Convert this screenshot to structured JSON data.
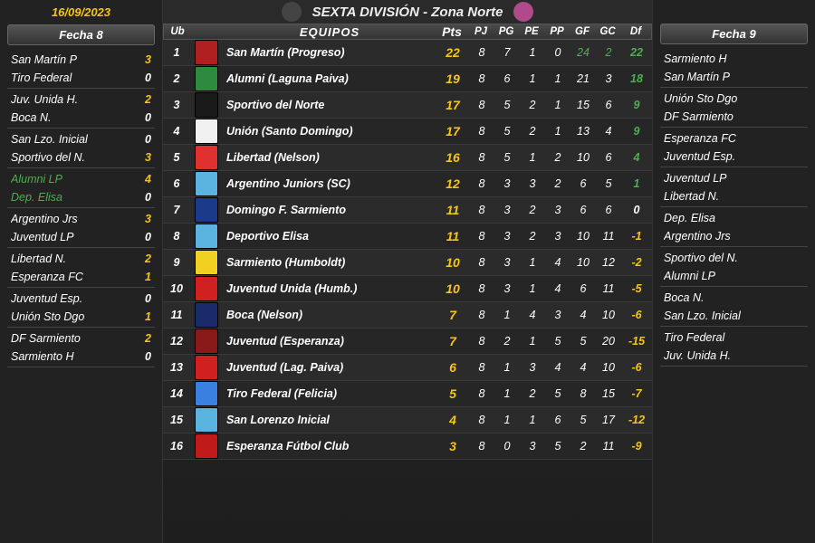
{
  "date": "16/09/2023",
  "title": "SEXTA DIVISIÓN - Zona Norte",
  "left_panel": {
    "header": "Fecha 8",
    "matches": [
      {
        "home": "San Martín P",
        "hs": "3",
        "away": "Tiro Federal",
        "as": "0",
        "hc": "yellow",
        "ac": "white",
        "hg": false,
        "ag": false
      },
      {
        "home": "Juv. Unida H.",
        "hs": "2",
        "away": "Boca N.",
        "as": "0",
        "hc": "yellow",
        "ac": "white",
        "hg": false,
        "ag": false
      },
      {
        "home": "San Lzo. Inicial",
        "hs": "0",
        "away": "Sportivo del N.",
        "as": "3",
        "hc": "white",
        "ac": "yellow",
        "hg": false,
        "ag": false
      },
      {
        "home": "Alumni LP",
        "hs": "4",
        "away": "Dep. Elisa",
        "as": "0",
        "hc": "yellow",
        "ac": "white",
        "hg": true,
        "ag": true
      },
      {
        "home": "Argentino Jrs",
        "hs": "3",
        "away": "Juventud LP",
        "as": "0",
        "hc": "yellow",
        "ac": "white",
        "hg": false,
        "ag": false
      },
      {
        "home": "Libertad N.",
        "hs": "2",
        "away": "Esperanza FC",
        "as": "1",
        "hc": "yellow",
        "ac": "yellow",
        "hg": false,
        "ag": false
      },
      {
        "home": "Juventud Esp.",
        "hs": "0",
        "away": "Unión Sto Dgo",
        "as": "1",
        "hc": "white",
        "ac": "yellow",
        "hg": false,
        "ag": false
      },
      {
        "home": "DF Sarmiento",
        "hs": "2",
        "away": "Sarmiento H",
        "as": "0",
        "hc": "yellow",
        "ac": "white",
        "hg": false,
        "ag": false
      }
    ]
  },
  "right_panel": {
    "header": "Fecha 9",
    "matches": [
      {
        "home": "Sarmiento H",
        "away": "San Martín P"
      },
      {
        "home": "Unión Sto Dgo",
        "away": "DF Sarmiento"
      },
      {
        "home": "Esperanza FC",
        "away": "Juventud Esp."
      },
      {
        "home": "Juventud LP",
        "away": "Libertad N."
      },
      {
        "home": "Dep. Elisa",
        "away": "Argentino Jrs"
      },
      {
        "home": "Sportivo del N.",
        "away": "Alumni LP"
      },
      {
        "home": "Boca N.",
        "away": "San Lzo. Inicial"
      },
      {
        "home": "Tiro Federal",
        "away": "Juv. Unida H."
      }
    ]
  },
  "table": {
    "columns": {
      "ub": "Ub",
      "equipos": "EQUIPOS",
      "pts": "Pts",
      "pj": "PJ",
      "pg": "PG",
      "pe": "PE",
      "pp": "PP",
      "gf": "GF",
      "gc": "GC",
      "df": "Df"
    },
    "rows": [
      {
        "ub": 1,
        "badge": "#b02020",
        "team": "San Martín (Progreso)",
        "pts": 22,
        "pj": 8,
        "pg": 7,
        "pe": 1,
        "pp": 0,
        "gf": 24,
        "gc": 2,
        "df": 22,
        "gfc": "green",
        "gcc": "green"
      },
      {
        "ub": 2,
        "badge": "#2e8b3d",
        "team": "Alumni (Laguna Paiva)",
        "pts": 19,
        "pj": 8,
        "pg": 6,
        "pe": 1,
        "pp": 1,
        "gf": 21,
        "gc": 3,
        "df": 18
      },
      {
        "ub": 3,
        "badge": "#1a1a1a",
        "team": "Sportivo del Norte",
        "pts": 17,
        "pj": 8,
        "pg": 5,
        "pe": 2,
        "pp": 1,
        "gf": 15,
        "gc": 6,
        "df": 9
      },
      {
        "ub": 4,
        "badge": "#f0f0f0",
        "team": "Unión (Santo Domingo)",
        "pts": 17,
        "pj": 8,
        "pg": 5,
        "pe": 2,
        "pp": 1,
        "gf": 13,
        "gc": 4,
        "df": 9
      },
      {
        "ub": 5,
        "badge": "#e03030",
        "team": "Libertad (Nelson)",
        "pts": 16,
        "pj": 8,
        "pg": 5,
        "pe": 1,
        "pp": 2,
        "gf": 10,
        "gc": 6,
        "df": 4
      },
      {
        "ub": 6,
        "badge": "#5bb4e0",
        "team": "Argentino Juniors (SC)",
        "pts": 12,
        "pj": 8,
        "pg": 3,
        "pe": 3,
        "pp": 2,
        "gf": 6,
        "gc": 5,
        "df": 1
      },
      {
        "ub": 7,
        "badge": "#1a3a8a",
        "team": "Domingo F. Sarmiento",
        "pts": 11,
        "pj": 8,
        "pg": 3,
        "pe": 2,
        "pp": 3,
        "gf": 6,
        "gc": 6,
        "df": 0
      },
      {
        "ub": 8,
        "badge": "#5bb4e0",
        "team": "Deportivo Elisa",
        "pts": 11,
        "pj": 8,
        "pg": 3,
        "pe": 2,
        "pp": 3,
        "gf": 10,
        "gc": 11,
        "df": -1
      },
      {
        "ub": 9,
        "badge": "#f0d020",
        "team": "Sarmiento (Humboldt)",
        "pts": 10,
        "pj": 8,
        "pg": 3,
        "pe": 1,
        "pp": 4,
        "gf": 10,
        "gc": 12,
        "df": -2
      },
      {
        "ub": 10,
        "badge": "#d02020",
        "team": "Juventud Unida (Humb.)",
        "pts": 10,
        "pj": 8,
        "pg": 3,
        "pe": 1,
        "pp": 4,
        "gf": 6,
        "gc": 11,
        "df": -5
      },
      {
        "ub": 11,
        "badge": "#1a2a6a",
        "team": "Boca (Nelson)",
        "pts": 7,
        "pj": 8,
        "pg": 1,
        "pe": 4,
        "pp": 3,
        "gf": 4,
        "gc": 10,
        "df": -6
      },
      {
        "ub": 12,
        "badge": "#8a1a1a",
        "team": "Juventud (Esperanza)",
        "pts": 7,
        "pj": 8,
        "pg": 2,
        "pe": 1,
        "pp": 5,
        "gf": 5,
        "gc": 20,
        "df": -15
      },
      {
        "ub": 13,
        "badge": "#d02020",
        "team": "Juventud (Lag. Paiva)",
        "pts": 6,
        "pj": 8,
        "pg": 1,
        "pe": 3,
        "pp": 4,
        "gf": 4,
        "gc": 10,
        "df": -6
      },
      {
        "ub": 14,
        "badge": "#3a80e0",
        "team": "Tiro Federal (Felicia)",
        "pts": 5,
        "pj": 8,
        "pg": 1,
        "pe": 2,
        "pp": 5,
        "gf": 8,
        "gc": 15,
        "df": -7
      },
      {
        "ub": 15,
        "badge": "#5bb4e0",
        "team": "San Lorenzo Inicial",
        "pts": 4,
        "pj": 8,
        "pg": 1,
        "pe": 1,
        "pp": 6,
        "gf": 5,
        "gc": 17,
        "df": -12
      },
      {
        "ub": 16,
        "badge": "#c01a1a",
        "team": "Esperanza Fútbol Club",
        "pts": 3,
        "pj": 8,
        "pg": 0,
        "pe": 3,
        "pp": 5,
        "gf": 2,
        "gc": 11,
        "df": -9
      }
    ]
  }
}
